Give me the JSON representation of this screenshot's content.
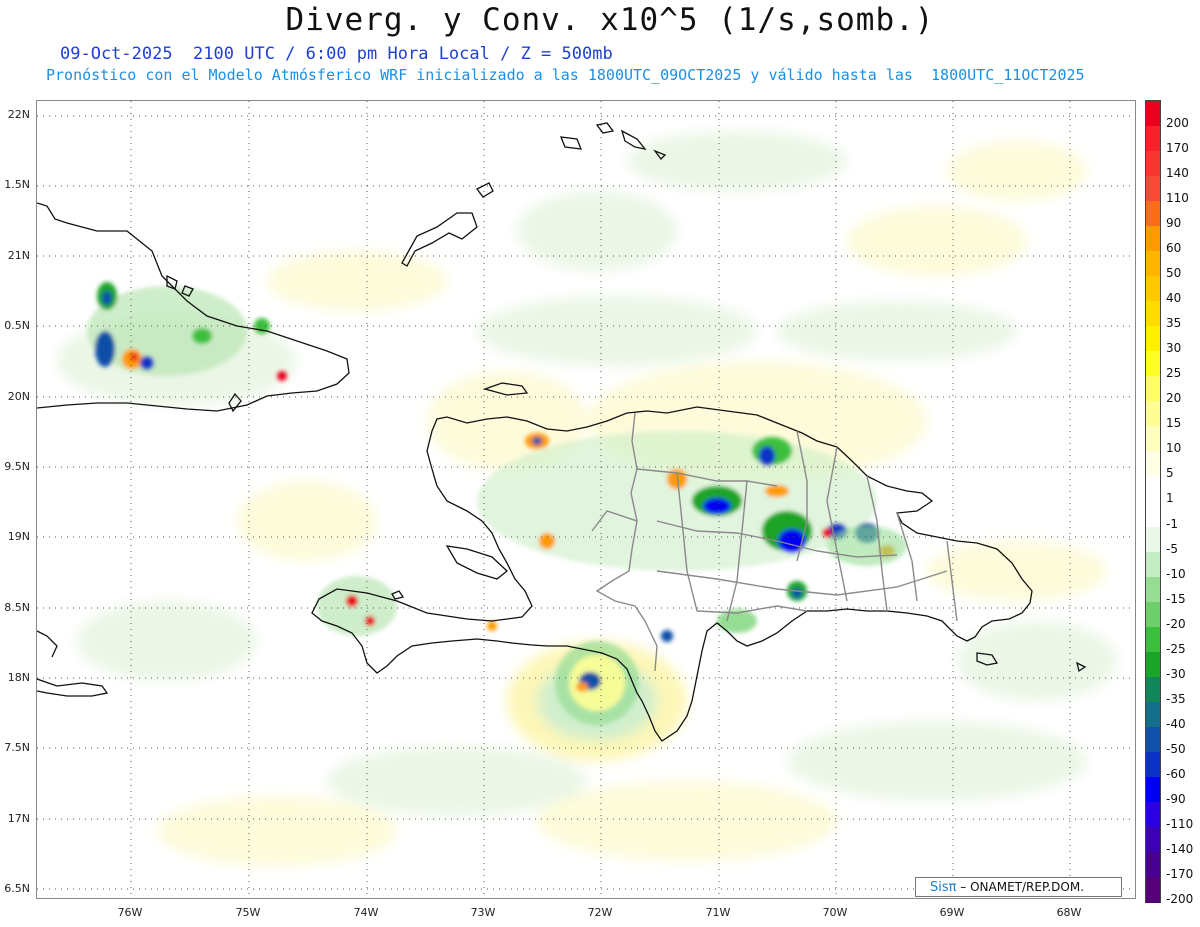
{
  "title": "Diverg. y Conv. x10^5 (1/s,somb.)",
  "subtitle_line1": "09-Oct-2025  2100 UTC / 6:00 pm Hora Local / Z = 500mb",
  "subtitle_line2": "Pronóstico con el Modelo Atmósferico WRF inicializado a las 1800UTC_09OCT2025 y válido hasta las  1800UTC_11OCT2025",
  "credit": {
    "logo": "Sisπ",
    "text": "– ONAMET/REP.DOM."
  },
  "lat_labels": [
    "22N",
    "1.5N",
    "21N",
    "0.5N",
    "20N",
    "9.5N",
    "19N",
    "8.5N",
    "18N",
    "7.5N",
    "17N",
    "6.5N"
  ],
  "lon_labels": [
    "76W",
    "75W",
    "74W",
    "73W",
    "72W",
    "71W",
    "70W",
    "69W",
    "68W"
  ],
  "colorbar": {
    "labels": [
      "200",
      "170",
      "140",
      "110",
      "90",
      "60",
      "50",
      "40",
      "35",
      "30",
      "25",
      "20",
      "15",
      "10",
      "5",
      "1",
      "-1",
      "-5",
      "-10",
      "-15",
      "-20",
      "-25",
      "-30",
      "-35",
      "-40",
      "-50",
      "-60",
      "-90",
      "-110",
      "-140",
      "-170",
      "-200"
    ],
    "colors": [
      "#e8001e",
      "#f5222a",
      "#f6372f",
      "#f84a34",
      "#fb6e17",
      "#ff9a00",
      "#ffb400",
      "#ffc800",
      "#ffdc00",
      "#fff000",
      "#ffff28",
      "#ffff64",
      "#ffff96",
      "#ffffbe",
      "#ffffe6",
      "#ffffff",
      "#ffffff",
      "#eaf8e8",
      "#c4ecc2",
      "#96dd94",
      "#6ccf6a",
      "#3cbf3c",
      "#1aa428",
      "#10865a",
      "#126e8a",
      "#1050a8",
      "#0a32c8",
      "#0000f0",
      "#2a00e0",
      "#3c00b8",
      "#480094",
      "#560078"
    ]
  }
}
